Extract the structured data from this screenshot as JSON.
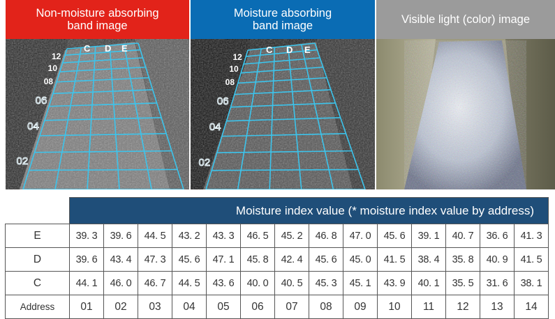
{
  "panels": [
    {
      "header_line1": "Non-moisture absorbing",
      "header_line2": "band image",
      "header_color": "#e2231a"
    },
    {
      "header_line1": "Moisture absorbing",
      "header_line2": "band image",
      "header_color": "#0a6cb4"
    },
    {
      "header_line1": "Visible light (color) image",
      "header_line2": "",
      "header_color": "#9b9b9b"
    }
  ],
  "grid": {
    "column_labels": [
      "C",
      "D",
      "E"
    ],
    "row_labels": [
      "12",
      "10",
      "08",
      "06",
      "04",
      "02"
    ],
    "line_color": "#3cc4ec"
  },
  "table": {
    "title": "Moisture index value    (* moisture index value by address)",
    "address_label": "Address",
    "addresses": [
      "01",
      "02",
      "03",
      "04",
      "05",
      "06",
      "07",
      "08",
      "09",
      "10",
      "11",
      "12",
      "13",
      "14"
    ],
    "rows": [
      {
        "label": "E",
        "values": [
          "39. 3",
          "39. 6",
          "44. 5",
          "43. 2",
          "43. 3",
          "46. 5",
          "45. 2",
          "46. 8",
          "47. 0",
          "45. 6",
          "39. 1",
          "40. 7",
          "36. 6",
          "41. 3"
        ]
      },
      {
        "label": "D",
        "values": [
          "39. 6",
          "43. 4",
          "47. 3",
          "45. 6",
          "47. 1",
          "45. 8",
          "42. 4",
          "45. 6",
          "45. 0",
          "41. 5",
          "38. 4",
          "35. 8",
          "40. 9",
          "41. 5"
        ]
      },
      {
        "label": "C",
        "values": [
          "44. 1",
          "46. 0",
          "46. 7",
          "44. 5",
          "43. 6",
          "40. 0",
          "40. 5",
          "45. 3",
          "45. 1",
          "43. 9",
          "40. 1",
          "35. 5",
          "31. 6",
          "38. 1"
        ]
      }
    ],
    "header_color": "#1f4e79"
  }
}
